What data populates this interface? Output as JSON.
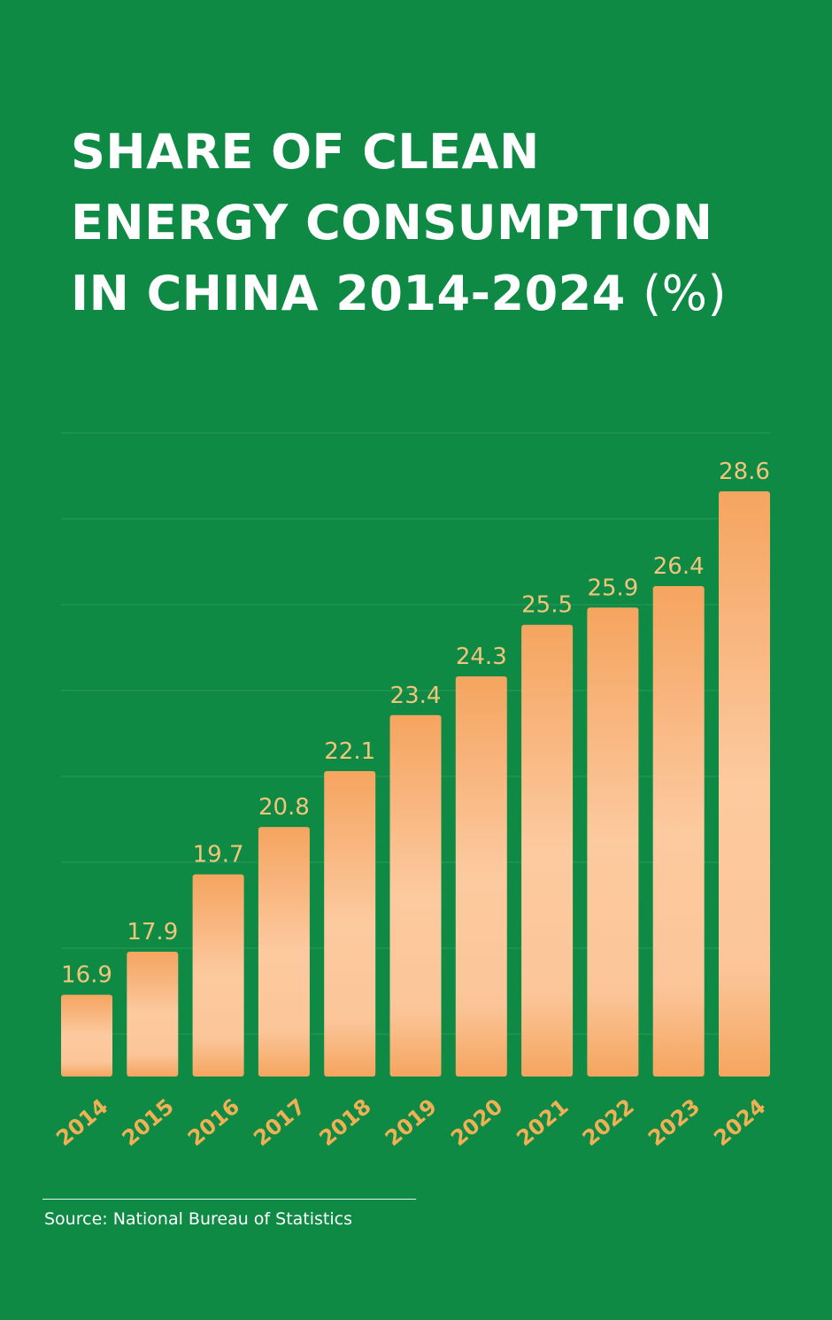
{
  "title": {
    "line1": "SHARE OF CLEAN",
    "line2": "ENERGY CONSUMPTION",
    "line3": "IN CHINA 2014-2024",
    "unit": "(%)"
  },
  "source": "Source: National Bureau of Statistics",
  "colors": {
    "background": "#0e8a45",
    "bar_top": "#f5a55f",
    "bar_mid": "#fcc9a0",
    "value_label": "#f2c57a",
    "year_label": "#f2b055",
    "gridline": "#2a9a5a"
  },
  "chart_data": {
    "type": "bar",
    "categories": [
      "2014",
      "2015",
      "2016",
      "2017",
      "2018",
      "2019",
      "2020",
      "2021",
      "2022",
      "2023",
      "2024"
    ],
    "values": [
      16.9,
      17.9,
      19.7,
      20.8,
      22.1,
      23.4,
      24.3,
      25.5,
      25.9,
      26.4,
      28.6
    ],
    "title": "SHARE OF CLEAN ENERGY CONSUMPTION IN CHINA 2014-2024 (%)",
    "xlabel": "",
    "ylabel": "",
    "ylim": [
      15,
      30
    ],
    "grid": true,
    "legend": "none"
  }
}
